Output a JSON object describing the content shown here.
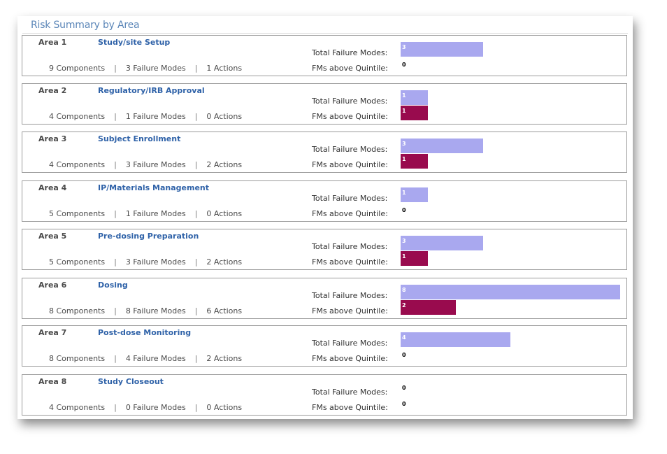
{
  "title": "Risk Summary by Area",
  "labels": {
    "total": "Total Failure Modes:",
    "quintile": "FMs above Quintile:",
    "separator": "|"
  },
  "colors": {
    "title": "#5b86b8",
    "area_name": "#2f62a8",
    "total_bar": "#a9a8ef",
    "quintile_bar": "#990b4e"
  },
  "chart_data": {
    "type": "bar",
    "categories": [
      "Area 1",
      "Area 2",
      "Area 3",
      "Area 4",
      "Area 5",
      "Area 6",
      "Area 7",
      "Area 8"
    ],
    "series": [
      {
        "values": [
          3,
          1,
          3,
          1,
          3,
          8,
          4,
          0
        ]
      },
      {
        "values": [
          0,
          1,
          1,
          0,
          1,
          2,
          0,
          0
        ]
      }
    ],
    "xlim": [
      0,
      8
    ]
  },
  "areas": [
    {
      "num": "Area 1",
      "name": "Study/site Setup",
      "components": "9 Components",
      "failure_modes": "3 Failure Modes",
      "actions": "1 Actions",
      "total": 3,
      "total_label": "3",
      "quintile": 0,
      "quintile_label": "0"
    },
    {
      "num": "Area 2",
      "name": "Regulatory/IRB Approval",
      "components": "4 Components",
      "failure_modes": "1 Failure Modes",
      "actions": "0 Actions",
      "total": 1,
      "total_label": "1",
      "quintile": 1,
      "quintile_label": "1"
    },
    {
      "num": "Area 3",
      "name": "Subject Enrollment",
      "components": "4 Components",
      "failure_modes": "3 Failure Modes",
      "actions": "2 Actions",
      "total": 3,
      "total_label": "3",
      "quintile": 1,
      "quintile_label": "1"
    },
    {
      "num": "Area 4",
      "name": "IP/Materials Management",
      "components": "5 Components",
      "failure_modes": "1 Failure Modes",
      "actions": "0 Actions",
      "total": 1,
      "total_label": "1",
      "quintile": 0,
      "quintile_label": "0"
    },
    {
      "num": "Area 5",
      "name": "Pre-dosing Preparation",
      "components": "5 Components",
      "failure_modes": "3 Failure Modes",
      "actions": "2 Actions",
      "total": 3,
      "total_label": "3",
      "quintile": 1,
      "quintile_label": "1"
    },
    {
      "num": "Area 6",
      "name": "Dosing",
      "components": "8 Components",
      "failure_modes": "8 Failure Modes",
      "actions": "6 Actions",
      "total": 8,
      "total_label": "8",
      "quintile": 2,
      "quintile_label": "2"
    },
    {
      "num": "Area 7",
      "name": "Post-dose Monitoring",
      "components": "8 Components",
      "failure_modes": "4 Failure Modes",
      "actions": "2 Actions",
      "total": 4,
      "total_label": "4",
      "quintile": 0,
      "quintile_label": "0"
    },
    {
      "num": "Area 8",
      "name": "Study Closeout",
      "components": "4 Components",
      "failure_modes": "0 Failure Modes",
      "actions": "0 Actions",
      "total": 0,
      "total_label": "0",
      "quintile": 0,
      "quintile_label": "0"
    }
  ]
}
